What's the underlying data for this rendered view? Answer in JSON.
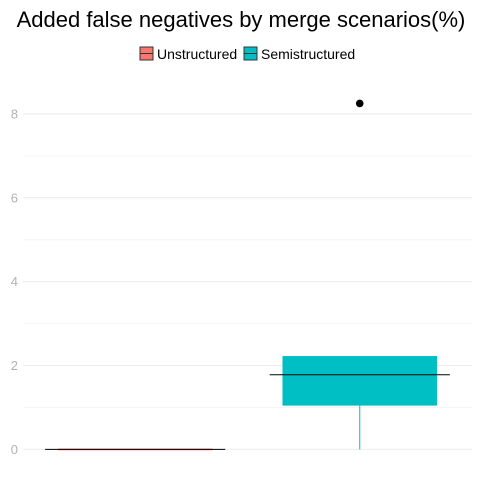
{
  "chart_data": {
    "type": "boxplot",
    "title": "Added false negatives by merge scenarios(%)",
    "xlabel": "",
    "ylabel": "",
    "ylim": [
      -0.3,
      9.0
    ],
    "y_ticks": [
      0,
      2,
      4,
      6,
      8
    ],
    "grid": true,
    "legend_position": "top",
    "series": [
      {
        "name": "Unstructured",
        "color": "#f8766d",
        "stats": {
          "min": 0,
          "q1": 0,
          "median": 0,
          "q3": 0,
          "max": 0
        },
        "outliers": []
      },
      {
        "name": "Semistructured",
        "color": "#00bfc4",
        "stats": {
          "min": 0,
          "q1": 1.05,
          "median": 1.78,
          "q3": 2.22,
          "max": 2.22
        },
        "outliers": [
          8.25
        ]
      }
    ]
  }
}
